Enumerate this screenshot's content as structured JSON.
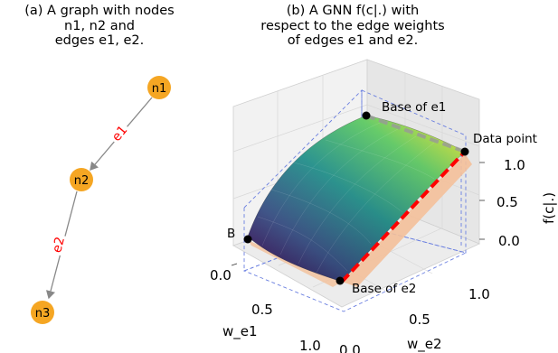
{
  "panel_a": {
    "caption": "(a) A graph with nodes\nn1, n2 and\nedges e1, e2.",
    "nodes": [
      "n1",
      "n2",
      "n3"
    ],
    "edges": [
      "e1",
      "e2"
    ],
    "node_color": "#f5a623",
    "edge_label_color": "#ff0000"
  },
  "panel_b": {
    "caption": "(b) A GNN f(c|.) with\nrespect to the edge weights\nof edges e1 and e2.",
    "annotations": {
      "base_e1": "Base of e1",
      "data_point": "Data point",
      "base_e2": "Base of e2",
      "b": "B"
    },
    "axes": {
      "x_label": "w_e1",
      "y_label": "w_e2",
      "z_label": "f(c|.)",
      "x_ticks": [
        "0.0",
        "0.5",
        "1.0"
      ],
      "y_ticks": [
        "0.0",
        "0.5",
        "1.0"
      ],
      "z_ticks": [
        "0.0",
        "0.5",
        "1.0"
      ]
    },
    "colors": {
      "surface_low": "#440154",
      "surface_mid": "#21918c",
      "surface_high": "#fde725",
      "path_red": "#ff0000",
      "path_gray": "#999999",
      "area_fill": "#f4c09a",
      "box_dashed": "#6a7fe0"
    }
  }
}
